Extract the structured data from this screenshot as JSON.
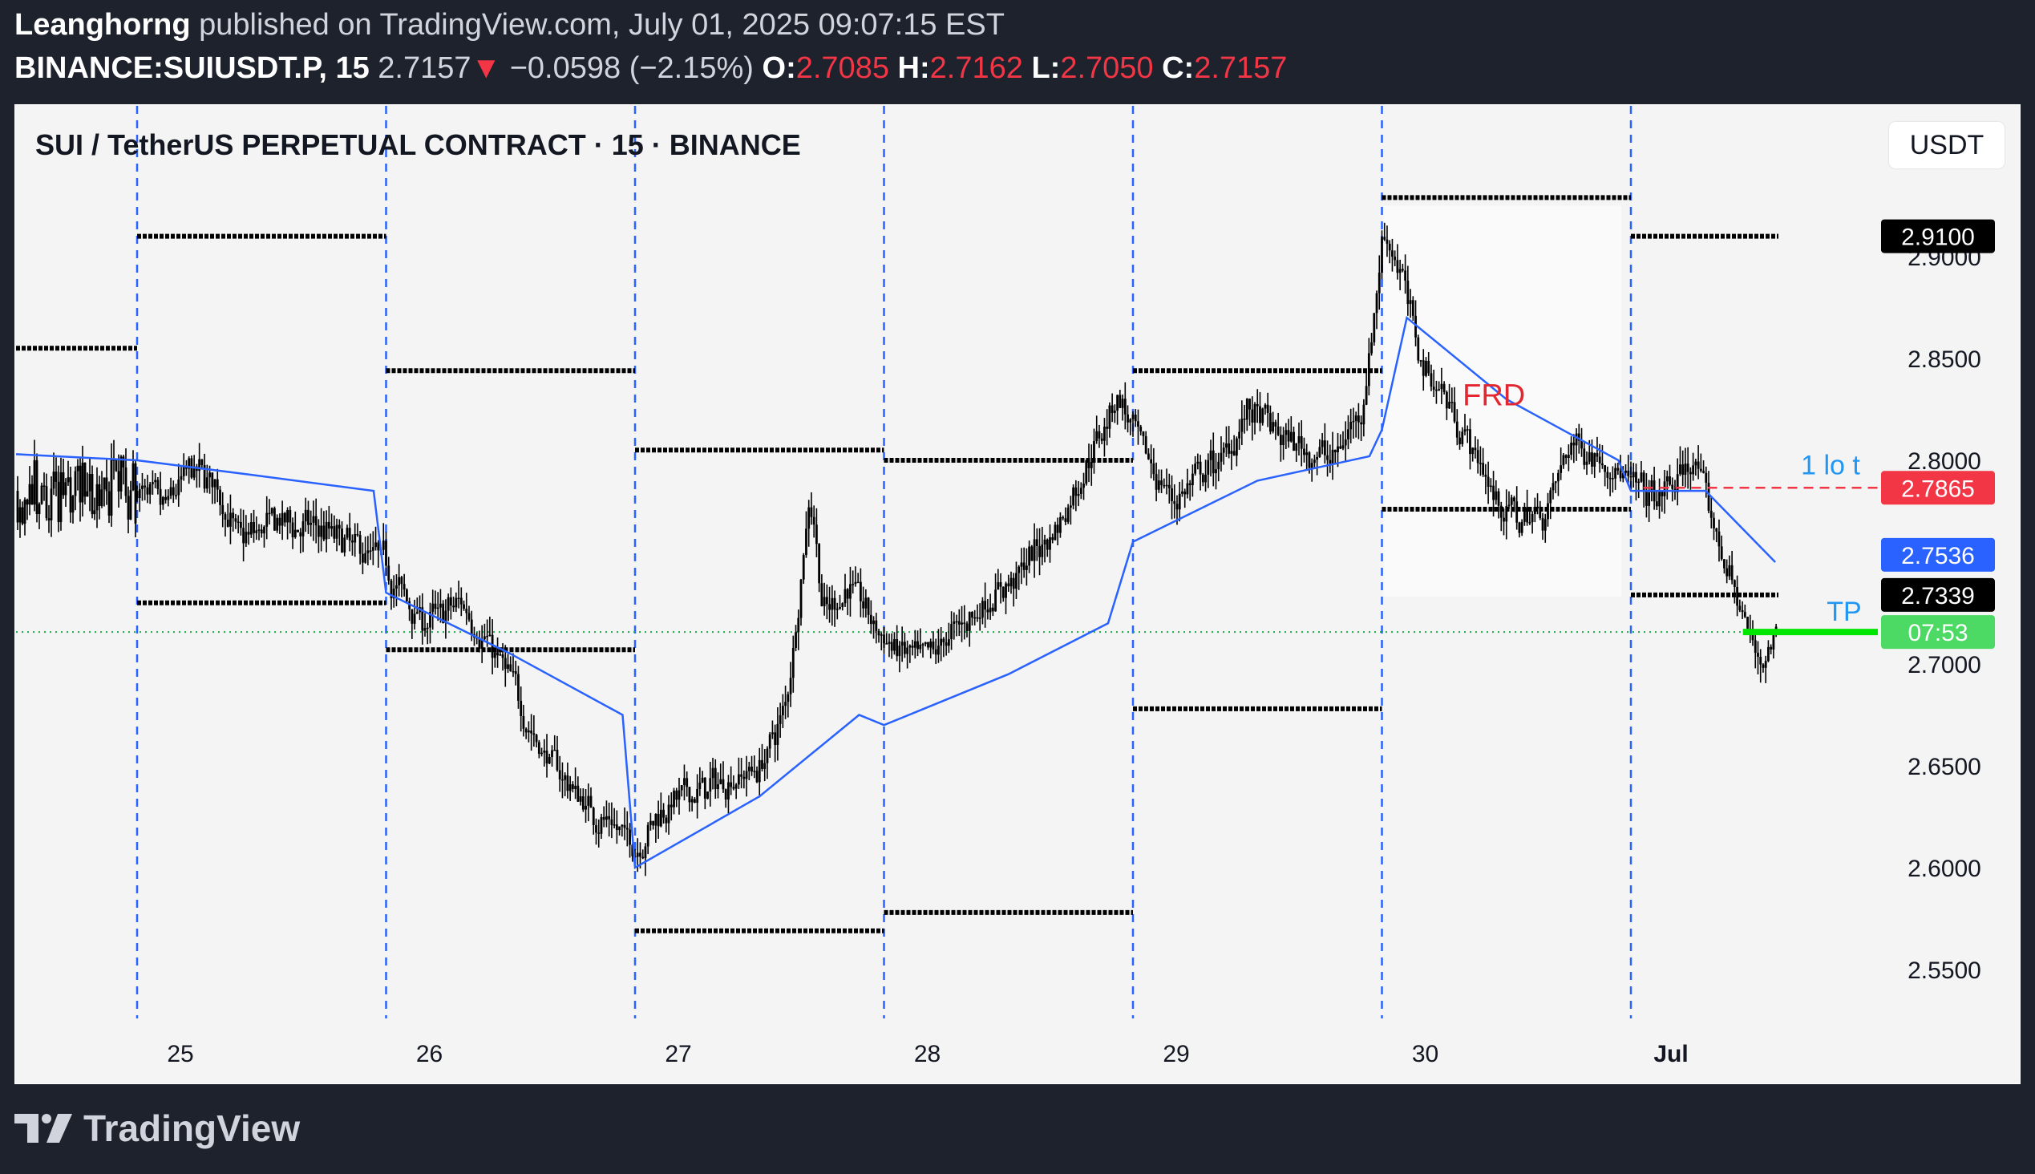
{
  "header": {
    "author": "Leanghorng",
    "published_text": "published on TradingView.com, July 01, 2025 09:07:15 EST",
    "symbol": "BINANCE:SUIUSDT.P, 15",
    "last_price": "2.7157",
    "change_arrow": "▼",
    "change": "−0.0598 (−2.15%)",
    "o_label": "O:",
    "o_value": "2.7085",
    "h_label": "H:",
    "h_value": "2.7162",
    "l_label": "L:",
    "l_value": "2.7050",
    "c_label": "C:",
    "c_value": "2.7157"
  },
  "chart_title": "SUI / TetherUS PERPETUAL CONTRACT · 15 · BINANCE",
  "currency_button": "USDT",
  "branding": "TradingView",
  "colors": {
    "background": "#1e222d",
    "plot_bg": "#f4f4f4",
    "candle": "#000000",
    "vwap": "#2962ff",
    "accent_red": "#f23645",
    "tp_green": "#00e600",
    "ask_blue": "#2196f3"
  },
  "chart_data": {
    "type": "candlestick",
    "symbol": "SUIUSDT.P",
    "timeframe": "15",
    "x_ticks": [
      "25",
      "26",
      "27",
      "28",
      "29",
      "30",
      "Jul"
    ],
    "y_ticks": [
      "2.9000",
      "2.8500",
      "2.8000",
      "2.7000",
      "2.6500",
      "2.6000",
      "2.5500"
    ],
    "ylim": [
      2.5,
      2.96
    ],
    "price_path": [
      [
        0.0,
        2.785
      ],
      [
        0.1,
        2.775
      ],
      [
        0.2,
        2.795
      ],
      [
        0.3,
        2.79
      ],
      [
        0.4,
        2.76
      ],
      [
        0.55,
        2.77
      ],
      [
        0.75,
        2.765
      ],
      [
        0.9,
        2.755
      ],
      [
        1.0,
        2.75
      ],
      [
        1.02,
        2.74
      ],
      [
        1.15,
        2.72
      ],
      [
        1.3,
        2.73
      ],
      [
        1.4,
        2.71
      ],
      [
        1.5,
        2.69
      ],
      [
        1.6,
        2.66
      ],
      [
        1.8,
        2.63
      ],
      [
        2.0,
        2.61
      ],
      [
        2.1,
        2.63
      ],
      [
        2.3,
        2.64
      ],
      [
        2.5,
        2.65
      ],
      [
        2.6,
        2.68
      ],
      [
        2.7,
        2.79
      ],
      [
        2.75,
        2.72
      ],
      [
        2.85,
        2.74
      ],
      [
        3.0,
        2.71
      ],
      [
        3.15,
        2.7
      ],
      [
        3.3,
        2.72
      ],
      [
        3.5,
        2.74
      ],
      [
        3.7,
        2.77
      ],
      [
        3.85,
        2.81
      ],
      [
        3.93,
        2.835
      ],
      [
        4.0,
        2.81
      ],
      [
        4.15,
        2.78
      ],
      [
        4.35,
        2.8
      ],
      [
        4.45,
        2.825
      ],
      [
        4.6,
        2.81
      ],
      [
        4.8,
        2.8
      ],
      [
        4.92,
        2.83
      ],
      [
        5.0,
        2.915
      ],
      [
        5.05,
        2.9
      ],
      [
        5.15,
        2.85
      ],
      [
        5.3,
        2.82
      ],
      [
        5.45,
        2.78
      ],
      [
        5.55,
        2.77
      ],
      [
        5.65,
        2.775
      ],
      [
        5.75,
        2.81
      ],
      [
        5.9,
        2.8
      ],
      [
        6.0,
        2.785
      ],
      [
        6.1,
        2.78
      ],
      [
        6.25,
        2.8
      ],
      [
        6.3,
        2.775
      ],
      [
        6.4,
        2.74
      ],
      [
        6.5,
        2.7
      ],
      [
        6.58,
        2.715
      ]
    ],
    "vwap_path": [
      [
        0.0,
        2.8
      ],
      [
        0.45,
        2.793
      ],
      [
        0.95,
        2.785
      ],
      [
        1.0,
        2.735
      ],
      [
        1.5,
        2.705
      ],
      [
        1.95,
        2.675
      ],
      [
        2.0,
        2.6
      ],
      [
        2.5,
        2.635
      ],
      [
        2.9,
        2.675
      ],
      [
        3.0,
        2.67
      ],
      [
        3.5,
        2.695
      ],
      [
        3.9,
        2.72
      ],
      [
        4.0,
        2.76
      ],
      [
        4.5,
        2.79
      ],
      [
        4.95,
        2.802
      ],
      [
        5.0,
        2.815
      ],
      [
        5.1,
        2.87
      ],
      [
        5.5,
        2.83
      ],
      [
        5.95,
        2.8
      ],
      [
        6.0,
        2.785
      ],
      [
        6.3,
        2.785
      ],
      [
        6.58,
        2.75
      ]
    ],
    "daily_levels": [
      {
        "day": -1,
        "high": 2.855,
        "low": null
      },
      {
        "day": 0,
        "high": 2.91,
        "low": 2.73
      },
      {
        "day": 1,
        "high": 2.844,
        "low": 2.707
      },
      {
        "day": 2,
        "high": 2.805,
        "low": 2.569
      },
      {
        "day": 3,
        "high": 2.8,
        "low": 2.578
      },
      {
        "day": 4,
        "high": 2.844,
        "low": 2.678
      },
      {
        "day": 5,
        "high": 2.929,
        "low": 2.776
      },
      {
        "day": 6,
        "high": 2.91,
        "low": 2.7339
      }
    ],
    "current_price": 2.7157,
    "price_labels": [
      {
        "text": "2.9100",
        "value": 2.91,
        "style": "black"
      },
      {
        "text": "2.7865",
        "value": 2.7865,
        "style": "red"
      },
      {
        "text": "2.7536",
        "value": 2.7536,
        "style": "blue"
      },
      {
        "text": "2.7339",
        "value": 2.7339,
        "style": "black"
      },
      {
        "text": "07:53",
        "value": 2.7157,
        "style": "green"
      }
    ],
    "annotations": [
      {
        "text": "FRD",
        "x": 5.45,
        "y": 2.827
      },
      {
        "text": "1 lo t",
        "value": 2.7865
      },
      {
        "text": "TP",
        "value": 2.7157
      }
    ]
  }
}
